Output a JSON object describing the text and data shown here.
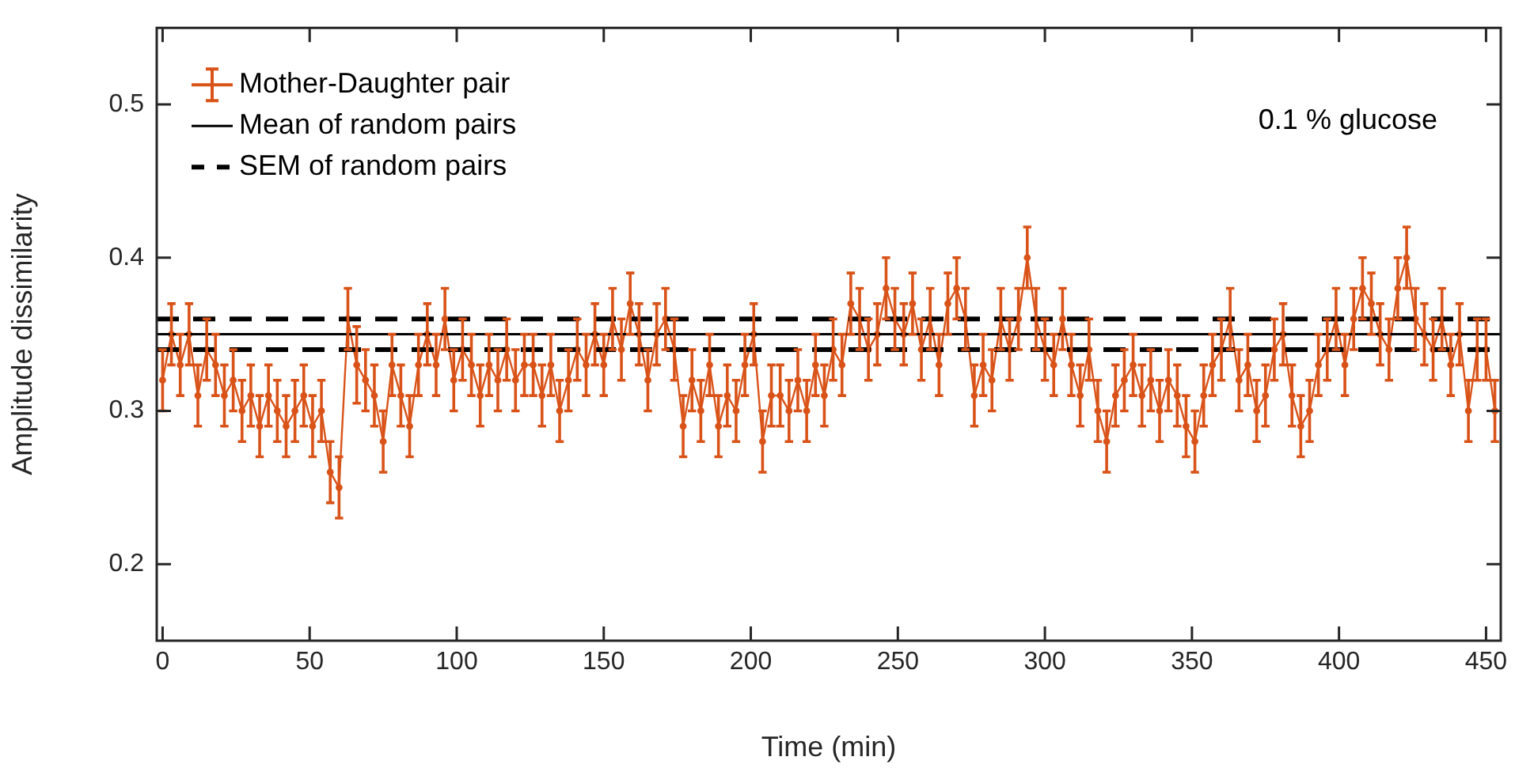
{
  "chart_data": {
    "type": "line",
    "xlabel": "Time (min)",
    "ylabel": "Amplitude dissimilarity",
    "annotations": [
      "0.1 % glucose"
    ],
    "x": [
      0,
      3,
      6,
      9,
      12,
      15,
      18,
      21,
      24,
      27,
      30,
      33,
      36,
      39,
      42,
      45,
      48,
      51,
      54,
      57,
      60,
      63,
      66,
      69,
      72,
      75,
      78,
      81,
      84,
      87,
      90,
      93,
      96,
      99,
      102,
      105,
      108,
      111,
      114,
      117,
      120,
      123,
      126,
      129,
      132,
      135,
      138,
      141,
      144,
      147,
      150,
      153,
      156,
      159,
      162,
      165,
      168,
      171,
      174,
      177,
      180,
      183,
      186,
      189,
      192,
      195,
      198,
      201,
      204,
      207,
      210,
      213,
      216,
      219,
      222,
      225,
      228,
      231,
      234,
      237,
      240,
      243,
      246,
      249,
      252,
      255,
      258,
      261,
      264,
      267,
      270,
      273,
      276,
      279,
      282,
      285,
      288,
      291,
      294,
      297,
      300,
      303,
      306,
      309,
      312,
      315,
      318,
      321,
      324,
      327,
      330,
      333,
      336,
      339,
      342,
      345,
      348,
      351,
      354,
      357,
      360,
      363,
      366,
      369,
      372,
      375,
      378,
      381,
      384,
      387,
      390,
      393,
      396,
      399,
      402,
      405,
      408,
      411,
      414,
      417,
      420,
      423,
      426,
      429,
      432,
      435,
      438,
      441,
      444,
      447,
      450,
      453
    ],
    "series": [
      {
        "name": "Mother-Daughter pair",
        "color": "#d95319",
        "values": [
          0.32,
          0.35,
          0.33,
          0.35,
          0.31,
          0.34,
          0.33,
          0.31,
          0.32,
          0.3,
          0.31,
          0.29,
          0.31,
          0.3,
          0.29,
          0.3,
          0.31,
          0.29,
          0.3,
          0.26,
          0.25,
          0.36,
          0.33,
          0.32,
          0.31,
          0.28,
          0.33,
          0.31,
          0.29,
          0.33,
          0.35,
          0.33,
          0.36,
          0.32,
          0.34,
          0.33,
          0.31,
          0.33,
          0.32,
          0.34,
          0.32,
          0.33,
          0.33,
          0.31,
          0.33,
          0.3,
          0.32,
          0.34,
          0.33,
          0.35,
          0.33,
          0.36,
          0.34,
          0.37,
          0.35,
          0.32,
          0.35,
          0.36,
          0.34,
          0.29,
          0.32,
          0.3,
          0.33,
          0.29,
          0.31,
          0.3,
          0.33,
          0.35,
          0.28,
          0.31,
          0.31,
          0.3,
          0.32,
          0.3,
          0.33,
          0.31,
          0.34,
          0.33,
          0.37,
          0.36,
          0.34,
          0.35,
          0.38,
          0.36,
          0.35,
          0.37,
          0.34,
          0.36,
          0.33,
          0.37,
          0.38,
          0.36,
          0.31,
          0.33,
          0.32,
          0.36,
          0.34,
          0.36,
          0.4,
          0.36,
          0.34,
          0.33,
          0.36,
          0.33,
          0.31,
          0.34,
          0.3,
          0.28,
          0.31,
          0.32,
          0.33,
          0.31,
          0.32,
          0.3,
          0.32,
          0.31,
          0.29,
          0.28,
          0.31,
          0.33,
          0.34,
          0.36,
          0.32,
          0.33,
          0.3,
          0.31,
          0.34,
          0.35,
          0.31,
          0.29,
          0.3,
          0.33,
          0.34,
          0.36,
          0.33,
          0.36,
          0.38,
          0.37,
          0.35,
          0.34,
          0.38,
          0.4,
          0.36,
          0.35,
          0.34,
          0.36,
          0.33,
          0.35,
          0.3,
          0.34,
          0.34,
          0.3
        ],
        "errors": [
          0.02,
          0.02,
          0.02,
          0.02,
          0.02,
          0.02,
          0.02,
          0.02,
          0.02,
          0.02,
          0.02,
          0.02,
          0.02,
          0.02,
          0.02,
          0.02,
          0.02,
          0.02,
          0.02,
          0.02,
          0.02,
          0.02,
          0.025,
          0.02,
          0.02,
          0.02,
          0.02,
          0.02,
          0.02,
          0.02,
          0.02,
          0.02,
          0.02,
          0.02,
          0.02,
          0.02,
          0.02,
          0.02,
          0.02,
          0.02,
          0.02,
          0.02,
          0.02,
          0.02,
          0.02,
          0.02,
          0.02,
          0.02,
          0.02,
          0.02,
          0.02,
          0.02,
          0.02,
          0.02,
          0.02,
          0.02,
          0.02,
          0.02,
          0.02,
          0.02,
          0.02,
          0.02,
          0.02,
          0.02,
          0.02,
          0.02,
          0.02,
          0.02,
          0.02,
          0.02,
          0.02,
          0.02,
          0.02,
          0.02,
          0.02,
          0.02,
          0.02,
          0.02,
          0.02,
          0.02,
          0.02,
          0.02,
          0.02,
          0.02,
          0.02,
          0.02,
          0.02,
          0.02,
          0.02,
          0.02,
          0.02,
          0.02,
          0.02,
          0.02,
          0.02,
          0.02,
          0.02,
          0.02,
          0.02,
          0.02,
          0.02,
          0.02,
          0.02,
          0.02,
          0.02,
          0.02,
          0.02,
          0.02,
          0.02,
          0.02,
          0.02,
          0.02,
          0.02,
          0.02,
          0.02,
          0.02,
          0.02,
          0.02,
          0.02,
          0.02,
          0.02,
          0.02,
          0.02,
          0.02,
          0.02,
          0.02,
          0.02,
          0.02,
          0.02,
          0.02,
          0.02,
          0.02,
          0.02,
          0.02,
          0.02,
          0.02,
          0.02,
          0.02,
          0.02,
          0.02,
          0.02,
          0.02,
          0.02,
          0.02,
          0.02,
          0.02,
          0.02,
          0.02,
          0.02,
          0.02,
          0.02,
          0.02
        ]
      }
    ],
    "xlim": [
      -2,
      455
    ],
    "ylim": [
      0.15,
      0.55
    ],
    "xticks": [
      0,
      50,
      100,
      150,
      200,
      250,
      300,
      350,
      400,
      450
    ],
    "yticks": [
      0.2,
      0.3,
      0.4,
      0.5
    ],
    "ref_lines": [
      {
        "axis": "y",
        "value": 0.35,
        "label": "Mean of random pairs",
        "color": "#000000",
        "line_style": "solid"
      },
      {
        "axis": "y",
        "value": 0.36,
        "label": "SEM of random pairs",
        "color": "#000000",
        "line_style": "dashed"
      },
      {
        "axis": "y",
        "value": 0.34,
        "color": "#000000",
        "line_style": "dashed"
      }
    ],
    "legend": "top left",
    "marker": "circle",
    "grid": false
  }
}
